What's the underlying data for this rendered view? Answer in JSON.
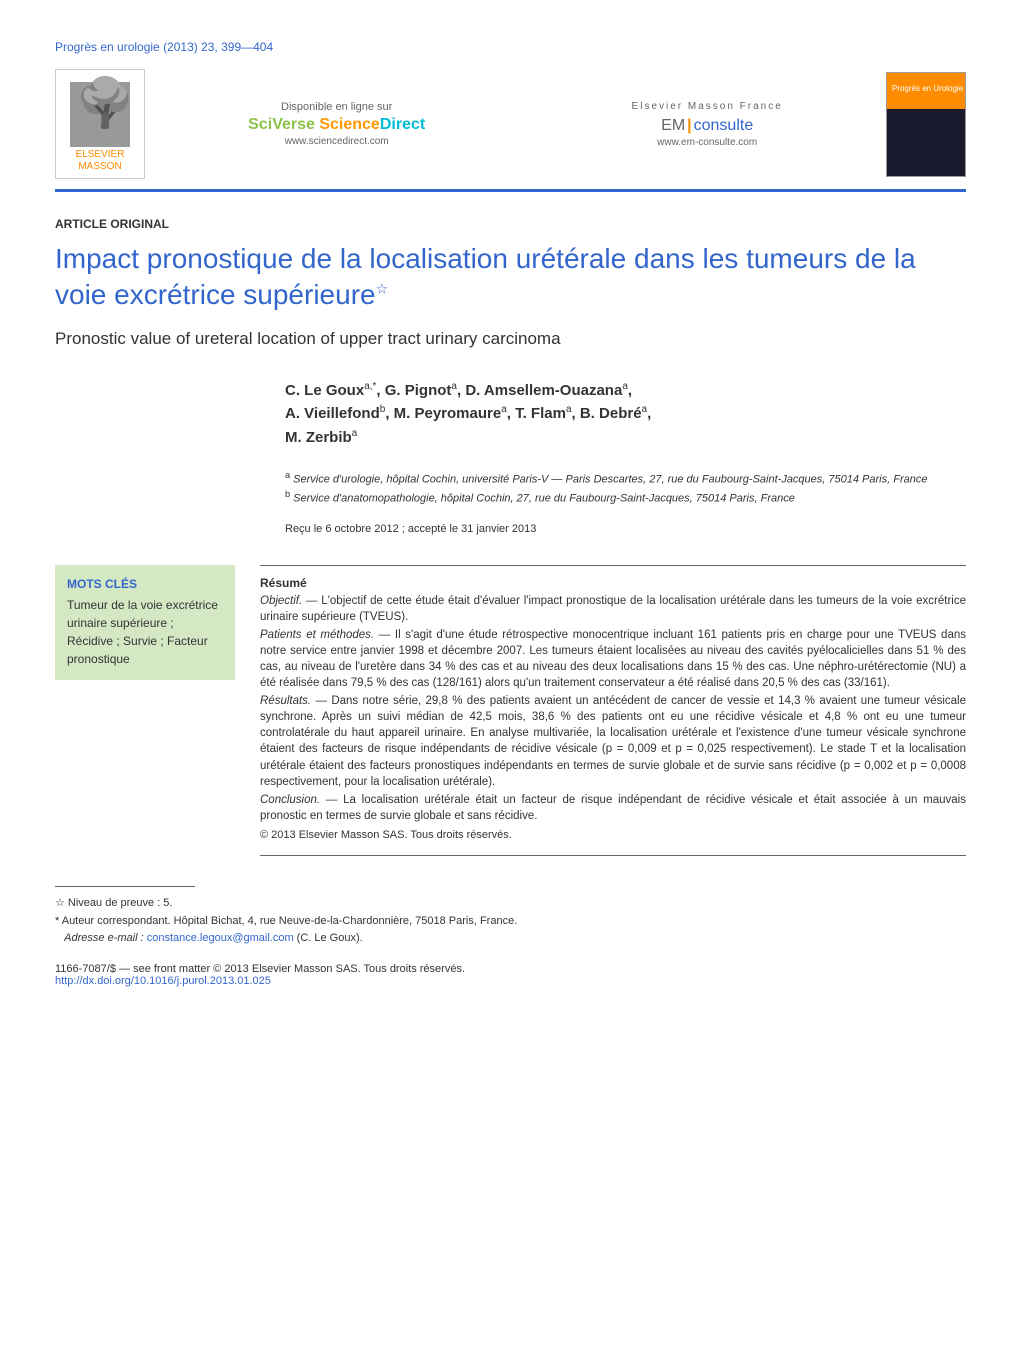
{
  "journal_ref": "Progrès en urologie (2013) 23, 399—404",
  "banner": {
    "publisher_name": "ELSEVIER MASSON",
    "left": {
      "available": "Disponible en ligne sur",
      "brand_sci": "SciVerse ",
      "brand_science": "Science",
      "brand_direct": "Direct",
      "url": "www.sciencedirect.com"
    },
    "right": {
      "france": "Elsevier Masson France",
      "em": "EM",
      "consulte": "consulte",
      "url": "www.em-consulte.com"
    },
    "cover_label": "Progrès en Urologie"
  },
  "article_type": "ARTICLE ORIGINAL",
  "title_fr": "Impact pronostique de la localisation urétérale dans les tumeurs de la voie excrétrice supérieure",
  "title_star": "☆",
  "title_en": "Pronostic value of ureteral location of upper tract urinary carcinoma",
  "authors_line1": "C. Le Goux",
  "authors_sup1": "a,*",
  "authors_line1b": ", G. Pignot",
  "authors_sup2": "a",
  "authors_line1c": ", D. Amsellem-Ouazana",
  "authors_sup3": "a",
  "authors_line1d": ",",
  "authors_line2": "A. Vieillefond",
  "authors_sup4": "b",
  "authors_line2b": ", M. Peyromaure",
  "authors_sup5": "a",
  "authors_line2c": ", T. Flam",
  "authors_sup6": "a",
  "authors_line2d": ", B. Debré",
  "authors_sup7": "a",
  "authors_line2e": ",",
  "authors_line3": "M. Zerbib",
  "authors_sup8": "a",
  "affiliations": {
    "a": "Service d'urologie, hôpital Cochin, université Paris-V — Paris Descartes, 27, rue du Faubourg-Saint-Jacques, 75014 Paris, France",
    "b": "Service d'anatomopathologie, hôpital Cochin, 27, rue du Faubourg-Saint-Jacques, 75014 Paris, France"
  },
  "dates": "Reçu le 6 octobre 2012 ; accepté le 31 janvier 2013",
  "keywords": {
    "title": "MOTS CLÉS",
    "items": "Tumeur de la voie excrétrice urinaire supérieure ; Récidive ; Survie ; Facteur pronostique"
  },
  "abstract": {
    "title": "Résumé",
    "objectif_label": "Objectif. —",
    "objectif": " L'objectif de cette étude était d'évaluer l'impact pronostique de la localisation urétérale dans les tumeurs de la voie excrétrice urinaire supérieure (TVEUS).",
    "patients_label": "Patients et méthodes. —",
    "patients": " Il s'agit d'une étude rétrospective monocentrique incluant 161 patients pris en charge pour une TVEUS dans notre service entre janvier 1998 et décembre 2007. Les tumeurs étaient localisées au niveau des cavités pyélocalicielles dans 51 % des cas, au niveau de l'uretère dans 34 % des cas et au niveau des deux localisations dans 15 % des cas. Une néphro-urétérectomie (NU) a été réalisée dans 79,5 % des cas (128/161) alors qu'un traitement conservateur a été réalisé dans 20,5 % des cas (33/161).",
    "resultats_label": "Résultats. —",
    "resultats": " Dans notre série, 29,8 % des patients avaient un antécédent de cancer de vessie et 14,3 % avaient une tumeur vésicale synchrone. Après un suivi médian de 42,5 mois, 38,6 % des patients ont eu une récidive vésicale et 4,8 % ont eu une tumeur controlatérale du haut appareil urinaire. En analyse multivariée, la localisation urétérale et l'existence d'une tumeur vésicale synchrone étaient des facteurs de risque indépendants de récidive vésicale (p = 0,009 et p = 0,025 respectivement). Le stade T et la localisation urétérale étaient des facteurs pronostiques indépendants en termes de survie globale et de survie sans récidive (p = 0,002 et p = 0,0008 respectivement, pour la localisation urétérale).",
    "conclusion_label": "Conclusion. —",
    "conclusion": " La localisation urétérale était un facteur de risque indépendant de récidive vésicale et était associée à un mauvais pronostic en termes de survie globale et sans récidive.",
    "copyright": "© 2013 Elsevier Masson SAS. Tous droits réservés."
  },
  "footnotes": {
    "star": "☆ Niveau de preuve : 5.",
    "corr": "* Auteur correspondant. Hôpital Bichat, 4, rue Neuve-de-la-Chardonnière, 75018 Paris, France.",
    "email_label": "Adresse e-mail : ",
    "email": "constance.legoux@gmail.com",
    "email_suffix": " (C. Le Goux)."
  },
  "front_matter": {
    "line1": "1166-7087/$ — see front matter © 2013 Elsevier Masson SAS. Tous droits réservés.",
    "doi": "http://dx.doi.org/10.1016/j.purol.2013.01.025"
  },
  "colors": {
    "link_blue": "#3366cc",
    "keyword_bg": "#d4e8c4",
    "orange": "#ff8c00"
  }
}
